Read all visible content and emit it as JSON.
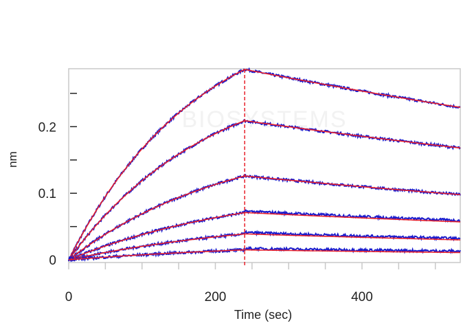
{
  "chart_data": {
    "type": "line",
    "title": "",
    "xlabel": "Time (sec)",
    "ylabel": "nm",
    "xlim": [
      0,
      534
    ],
    "ylim": [
      -0.004,
      0.287
    ],
    "x_ticks": [
      0,
      200,
      400
    ],
    "x_tick_labels": [
      "0",
      "200",
      "400"
    ],
    "x_minor_step": 50,
    "y_ticks": [
      0,
      0.1,
      0.2
    ],
    "y_tick_labels": [
      "0",
      "0.1",
      "0.2"
    ],
    "y_minor_step": 0.05,
    "grid": false,
    "legend": "none",
    "association_end_sec": 240,
    "watermark": "BIOSYSTEMS",
    "colors": {
      "raw": "#1a1acc",
      "fit": "#e8202a",
      "frame": "#c8c8c8"
    },
    "series": [
      {
        "name": "curve-1",
        "peak_nm": 0.286,
        "end_nm": 0.229,
        "kobs": 0.0057
      },
      {
        "name": "curve-2",
        "peak_nm": 0.209,
        "end_nm": 0.168,
        "kobs": 0.0052
      },
      {
        "name": "curve-3",
        "peak_nm": 0.126,
        "end_nm": 0.098,
        "kobs": 0.0045
      },
      {
        "name": "curve-4",
        "peak_nm": 0.071,
        "end_nm": 0.057,
        "kobs": 0.004
      },
      {
        "name": "curve-5",
        "peak_nm": 0.039,
        "end_nm": 0.03,
        "kobs": 0.0035
      },
      {
        "name": "curve-6",
        "peak_nm": 0.015,
        "end_nm": 0.011,
        "kobs": 0.003
      }
    ]
  }
}
